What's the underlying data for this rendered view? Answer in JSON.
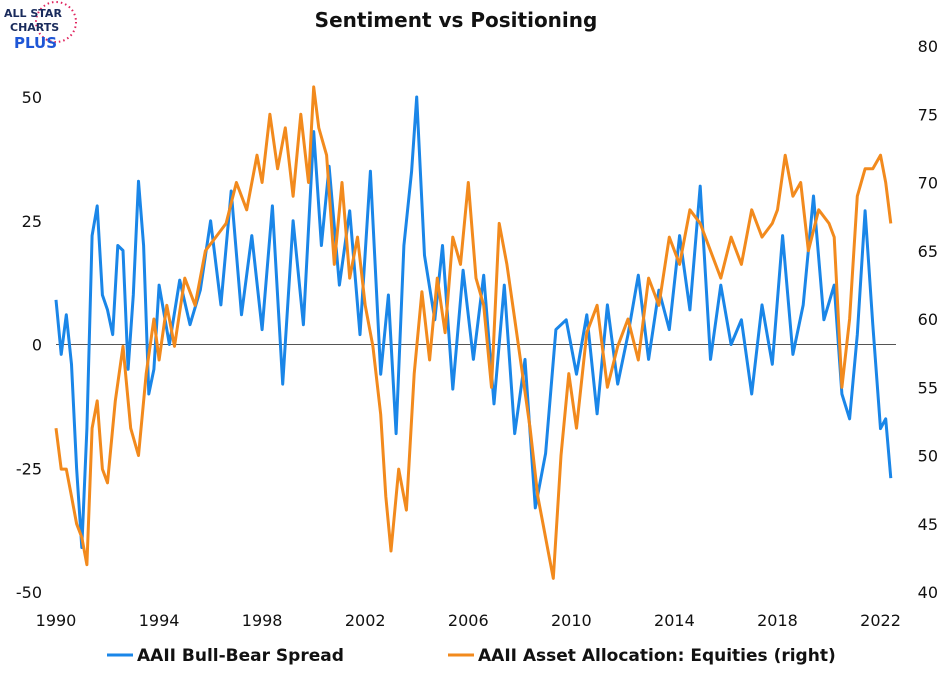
{
  "logo": {
    "line1": "ALL STAR",
    "line2": "CHARTS",
    "line3": "PLUS"
  },
  "chart_data": {
    "type": "line",
    "title": "Sentiment vs Positioning",
    "xlabel": "",
    "ylabel": "",
    "x_ticks": [
      "1990",
      "1994",
      "1998",
      "2002",
      "2006",
      "2010",
      "2014",
      "2018",
      "2022"
    ],
    "xlim": [
      1990,
      2022.6
    ],
    "y_left_ticks": [
      "50",
      "25",
      "0",
      "-25",
      "-50"
    ],
    "ylim_left": [
      -50,
      50
    ],
    "y_right_ticks": [
      "80",
      "75",
      "70",
      "65",
      "60",
      "55",
      "50",
      "45",
      "40"
    ],
    "ylim_right": [
      40,
      80
    ],
    "zero_line": true,
    "legend_position": "bottom",
    "colors": {
      "spread": "#1a86e8",
      "allocation": "#f28a1d",
      "zero": "#555555"
    },
    "series": [
      {
        "name": "AAII Bull-Bear Spread",
        "axis": "left",
        "x": [
          1990.0,
          1990.2,
          1990.4,
          1990.6,
          1990.8,
          1991.0,
          1991.2,
          1991.4,
          1991.6,
          1991.8,
          1992.0,
          1992.2,
          1992.4,
          1992.6,
          1992.8,
          1993.0,
          1993.2,
          1993.4,
          1993.6,
          1993.8,
          1994.0,
          1994.4,
          1994.8,
          1995.2,
          1995.6,
          1996.0,
          1996.4,
          1996.8,
          1997.2,
          1997.6,
          1998.0,
          1998.4,
          1998.8,
          1999.2,
          1999.6,
          2000.0,
          2000.3,
          2000.6,
          2001.0,
          2001.4,
          2001.8,
          2002.2,
          2002.6,
          2002.9,
          2003.2,
          2003.5,
          2003.8,
          2004.0,
          2004.3,
          2004.7,
          2005.0,
          2005.4,
          2005.8,
          2006.2,
          2006.6,
          2007.0,
          2007.4,
          2007.8,
          2008.2,
          2008.6,
          2009.0,
          2009.4,
          2009.8,
          2010.2,
          2010.6,
          2011.0,
          2011.4,
          2011.8,
          2012.2,
          2012.6,
          2013.0,
          2013.4,
          2013.8,
          2014.2,
          2014.6,
          2015.0,
          2015.4,
          2015.8,
          2016.2,
          2016.6,
          2017.0,
          2017.4,
          2017.8,
          2018.2,
          2018.6,
          2019.0,
          2019.4,
          2019.8,
          2020.2,
          2020.5,
          2020.8,
          2021.1,
          2021.4,
          2021.7,
          2022.0,
          2022.2,
          2022.4
        ],
        "y": [
          9,
          -2,
          6,
          -4,
          -25,
          -41,
          -17,
          22,
          28,
          10,
          7,
          2,
          20,
          19,
          -5,
          10,
          33,
          20,
          -10,
          -5,
          12,
          0,
          13,
          4,
          11,
          25,
          8,
          31,
          6,
          22,
          3,
          28,
          -8,
          25,
          4,
          43,
          20,
          36,
          12,
          27,
          2,
          35,
          -6,
          10,
          -18,
          20,
          35,
          50,
          18,
          5,
          20,
          -9,
          15,
          -3,
          14,
          -12,
          12,
          -18,
          -3,
          -33,
          -22,
          3,
          5,
          -6,
          6,
          -14,
          8,
          -8,
          2,
          14,
          -3,
          11,
          3,
          22,
          7,
          32,
          -3,
          12,
          0,
          5,
          -10,
          8,
          -4,
          22,
          -2,
          8,
          30,
          5,
          12,
          -10,
          -15,
          2,
          27,
          4,
          -17,
          -15,
          -27
        ]
      },
      {
        "name": "AAII Asset Allocation: Equities (right)",
        "axis": "right",
        "x": [
          1990.0,
          1990.2,
          1990.4,
          1990.6,
          1990.8,
          1991.0,
          1991.2,
          1991.4,
          1991.6,
          1991.8,
          1992.0,
          1992.3,
          1992.6,
          1992.9,
          1993.2,
          1993.5,
          1993.8,
          1994.0,
          1994.3,
          1994.6,
          1995.0,
          1995.4,
          1995.8,
          1996.2,
          1996.6,
          1997.0,
          1997.4,
          1997.8,
          1998.0,
          1998.3,
          1998.6,
          1998.9,
          1999.2,
          1999.5,
          1999.8,
          2000.0,
          2000.2,
          2000.5,
          2000.8,
          2001.1,
          2001.4,
          2001.7,
          2002.0,
          2002.3,
          2002.6,
          2002.8,
          2003.0,
          2003.3,
          2003.6,
          2003.9,
          2004.2,
          2004.5,
          2004.8,
          2005.1,
          2005.4,
          2005.7,
          2006.0,
          2006.3,
          2006.6,
          2006.9,
          2007.2,
          2007.5,
          2007.8,
          2008.1,
          2008.4,
          2008.7,
          2008.9,
          2009.1,
          2009.3,
          2009.6,
          2009.9,
          2010.2,
          2010.6,
          2011.0,
          2011.4,
          2011.8,
          2012.2,
          2012.6,
          2013.0,
          2013.4,
          2013.8,
          2014.2,
          2014.6,
          2015.0,
          2015.4,
          2015.8,
          2016.2,
          2016.6,
          2017.0,
          2017.4,
          2017.8,
          2018.0,
          2018.3,
          2018.6,
          2018.9,
          2019.2,
          2019.6,
          2020.0,
          2020.2,
          2020.5,
          2020.8,
          2021.1,
          2021.4,
          2021.7,
          2022.0,
          2022.2,
          2022.4
        ],
        "y": [
          52,
          49,
          49,
          47,
          45,
          44,
          42,
          52,
          54,
          49,
          48,
          54,
          58,
          52,
          50,
          56,
          60,
          57,
          61,
          58,
          63,
          61,
          65,
          66,
          67,
          70,
          68,
          72,
          70,
          75,
          71,
          74,
          69,
          75,
          70,
          77,
          74,
          72,
          64,
          70,
          63,
          66,
          61,
          58,
          53,
          47,
          43,
          49,
          46,
          56,
          62,
          57,
          63,
          59,
          66,
          64,
          70,
          63,
          61,
          55,
          67,
          64,
          60,
          56,
          52,
          47,
          45,
          43,
          41,
          50,
          56,
          52,
          59,
          61,
          55,
          58,
          60,
          57,
          63,
          61,
          66,
          64,
          68,
          67,
          65,
          63,
          66,
          64,
          68,
          66,
          67,
          68,
          72,
          69,
          70,
          65,
          68,
          67,
          66,
          55,
          60,
          69,
          71,
          71,
          72,
          70,
          67
        ]
      }
    ]
  }
}
